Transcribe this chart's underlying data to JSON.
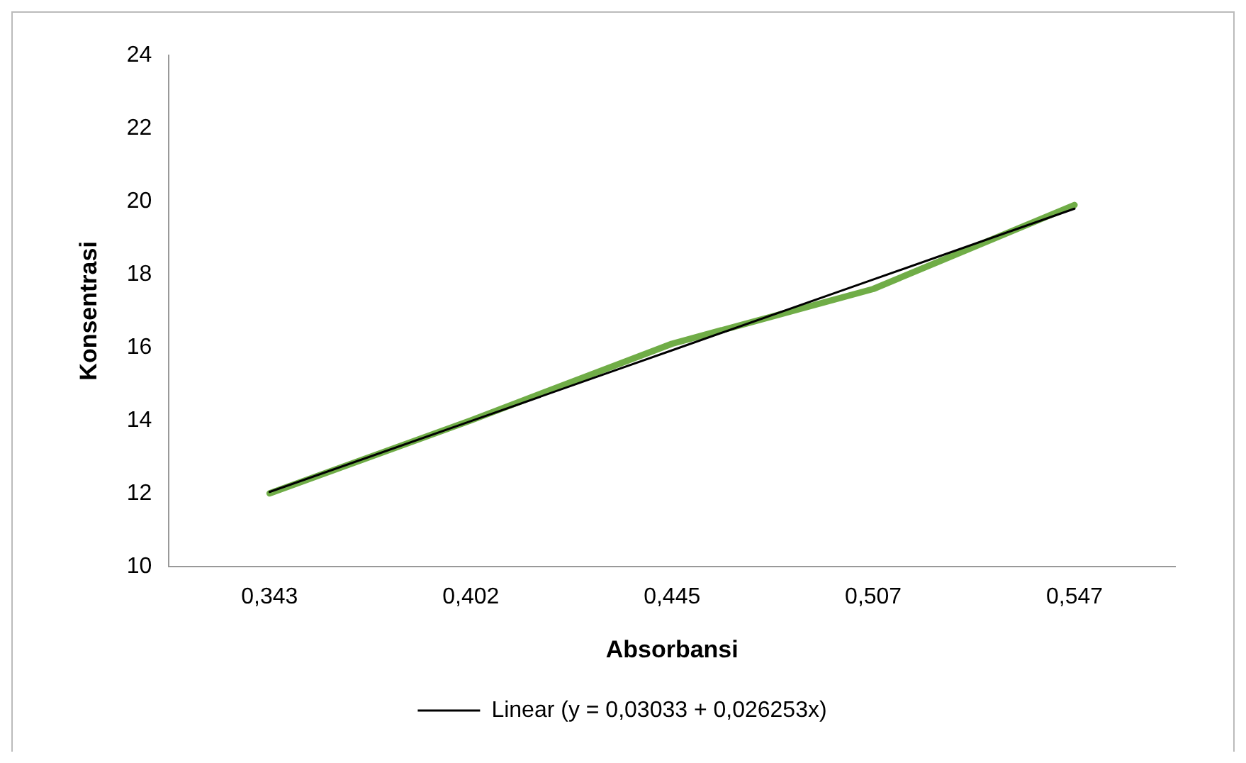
{
  "chart_data": {
    "type": "line",
    "xlabel": "Absorbansi",
    "ylabel": "Konsentrasi",
    "categories": [
      "0,343",
      "0,402",
      "0,445",
      "0,507",
      "0,547"
    ],
    "series": [
      {
        "color": "#70ad47",
        "values": [
          12.0,
          14.0,
          16.1,
          17.6,
          19.9
        ]
      },
      {
        "name": "Linear (y = 0,03033 + 0,026253x)",
        "color": "#000000",
        "values": [
          12.04,
          13.98,
          15.92,
          17.86,
          19.8
        ]
      }
    ],
    "ylim": [
      10,
      24
    ],
    "yticks": [
      10,
      12,
      14,
      16,
      18,
      20,
      22,
      24
    ],
    "grid": false,
    "legend": "bottom",
    "marker": "none",
    "line_style": "solid"
  }
}
